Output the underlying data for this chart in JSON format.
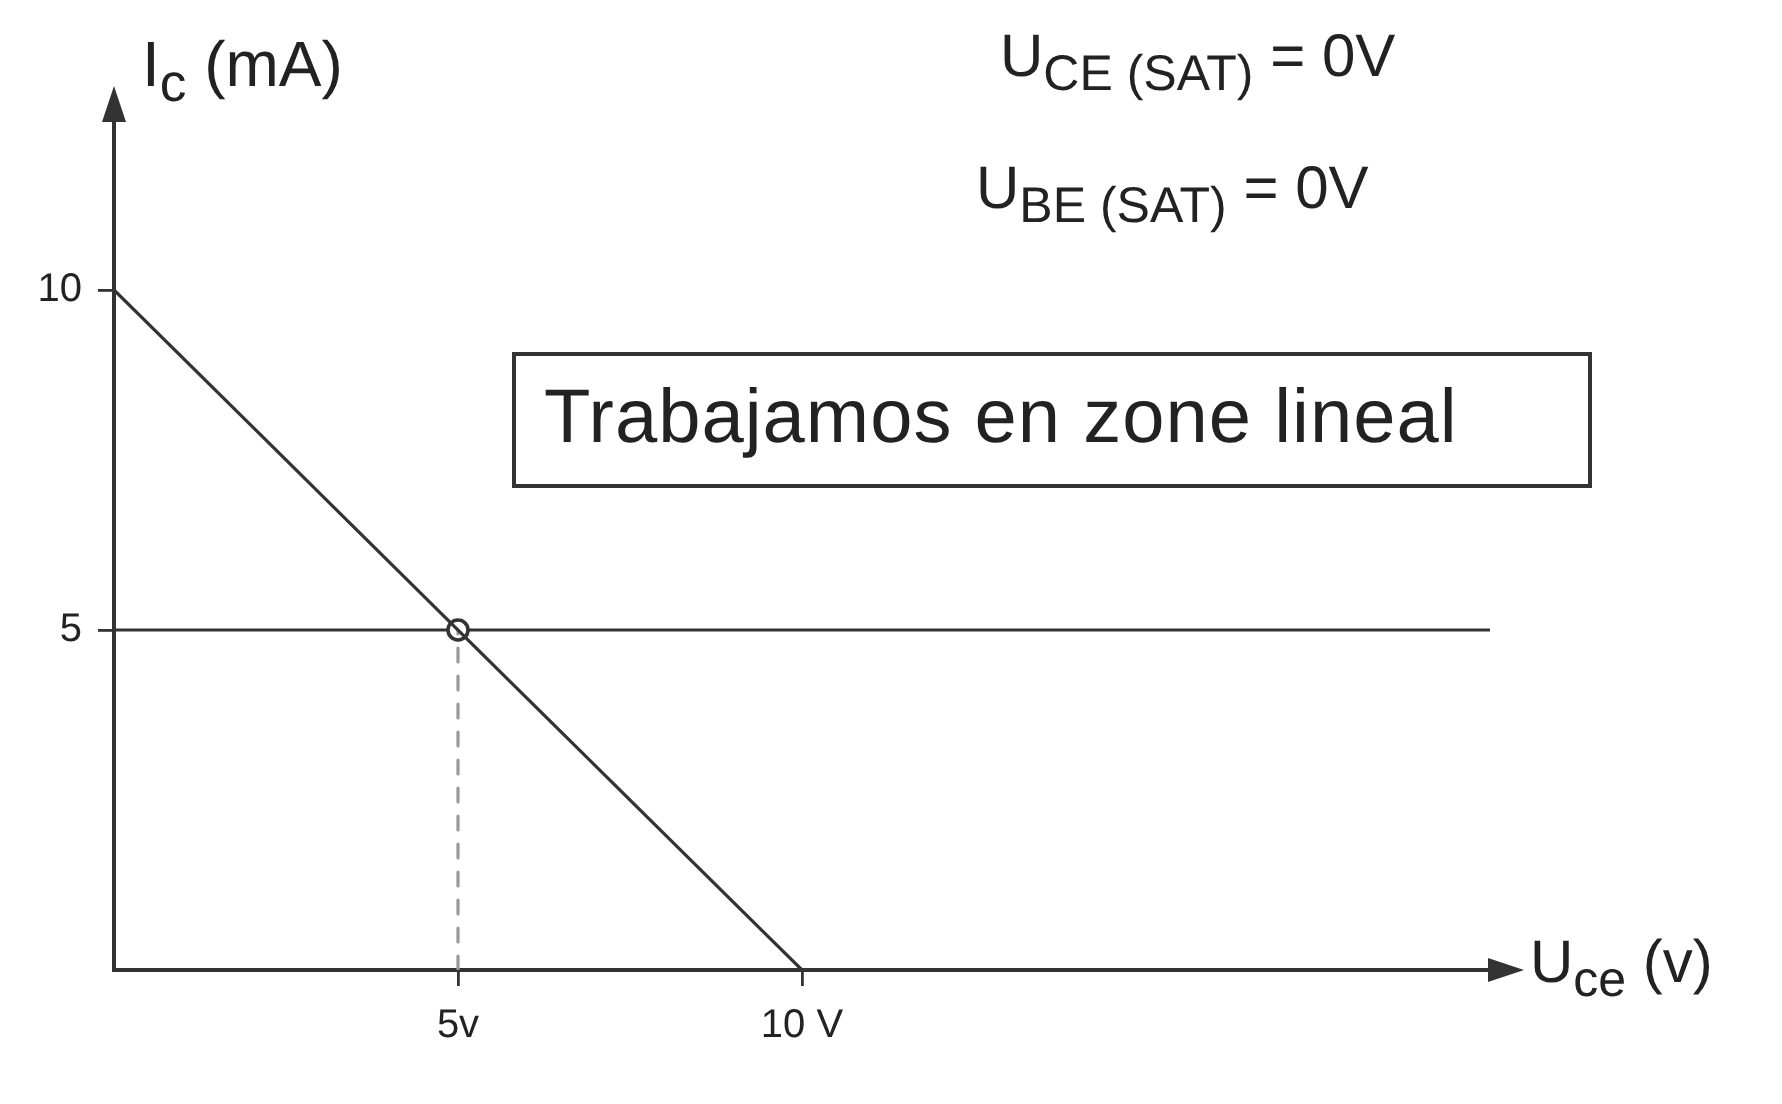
{
  "chart_data": {
    "type": "line",
    "xlabel": "U$_{ce}$ (v)",
    "ylabel": "I$_{c}$ (mA)",
    "annotations": [
      "U$_{CE (SAT)}$ = 0V",
      "U$_{BE (SAT)}$ = 0V",
      "Trabajamos en zone lineal"
    ],
    "xlim": [
      0,
      20
    ],
    "xticks": [
      {
        "value": 5,
        "label": "5v"
      },
      {
        "value": 10,
        "label": "10 V"
      }
    ],
    "ylim": [
      0,
      12.5
    ],
    "yticks": [
      5,
      10
    ],
    "series": [
      {
        "x": [
          0,
          10
        ],
        "values": [
          10,
          0
        ],
        "color": "#333333"
      },
      {
        "x": [
          5,
          5
        ],
        "values": [
          0,
          5
        ],
        "color": "#9a9a9a",
        "line_style": "dashed"
      },
      {
        "type": "scatter",
        "x": [
          5
        ],
        "values": [
          5
        ],
        "color": "#333333",
        "marker": "circle"
      }
    ],
    "ref_lines": [
      {
        "axis": "y",
        "value": 5,
        "color": "#333333"
      }
    ]
  }
}
